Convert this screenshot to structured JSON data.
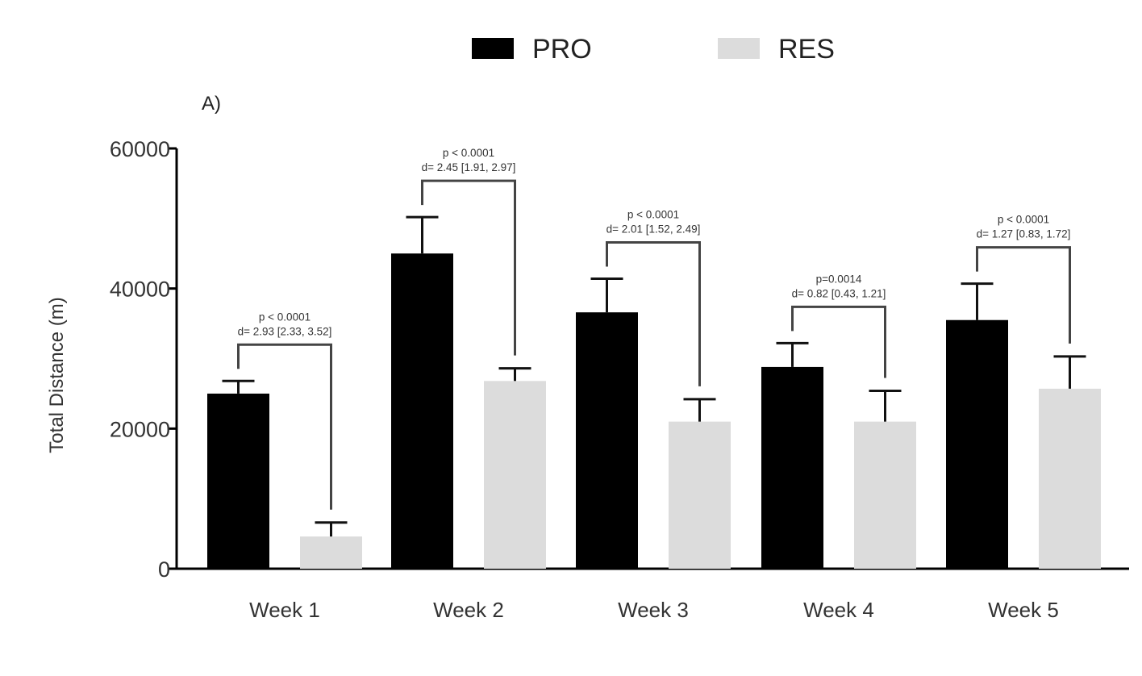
{
  "panel_label": "A)",
  "colors": {
    "PRO": "#000000",
    "RES": "#dcdcdc",
    "axis": "#000000",
    "text": "#333333"
  },
  "chart_data": {
    "type": "bar",
    "title": "",
    "xlabel": "",
    "ylabel": "Total Distance (m)",
    "ylim": [
      0,
      60000
    ],
    "yticks": [
      0,
      20000,
      40000,
      60000
    ],
    "ytick_labels": [
      "0",
      "20000",
      "40000",
      "60000"
    ],
    "categories": [
      "Week 1",
      "Week 2",
      "Week 3",
      "Week 4",
      "Week 5"
    ],
    "legend_position": "top-center",
    "grid": false,
    "series": [
      {
        "name": "PRO",
        "values": [
          25000,
          45000,
          36600,
          28800,
          35500
        ],
        "error": [
          1800,
          5200,
          4800,
          3400,
          5200
        ]
      },
      {
        "name": "RES",
        "values": [
          4600,
          26800,
          21000,
          21000,
          25700
        ],
        "error": [
          2000,
          1800,
          3200,
          4400,
          4600
        ]
      }
    ],
    "annotations": [
      {
        "category": "Week 1",
        "p": "p < 0.0001",
        "d": "d= 2.93 [2.33, 3.52]"
      },
      {
        "category": "Week 2",
        "p": "p < 0.0001",
        "d": "d= 2.45 [1.91, 2.97]"
      },
      {
        "category": "Week 3",
        "p": "p < 0.0001",
        "d": "d= 2.01 [1.52, 2.49]"
      },
      {
        "category": "Week 4",
        "p": "p=0.0014",
        "d": "d= 0.82 [0.43, 1.21]"
      },
      {
        "category": "Week 5",
        "p": "p < 0.0001",
        "d": "d= 1.27 [0.83, 1.72]"
      }
    ]
  }
}
